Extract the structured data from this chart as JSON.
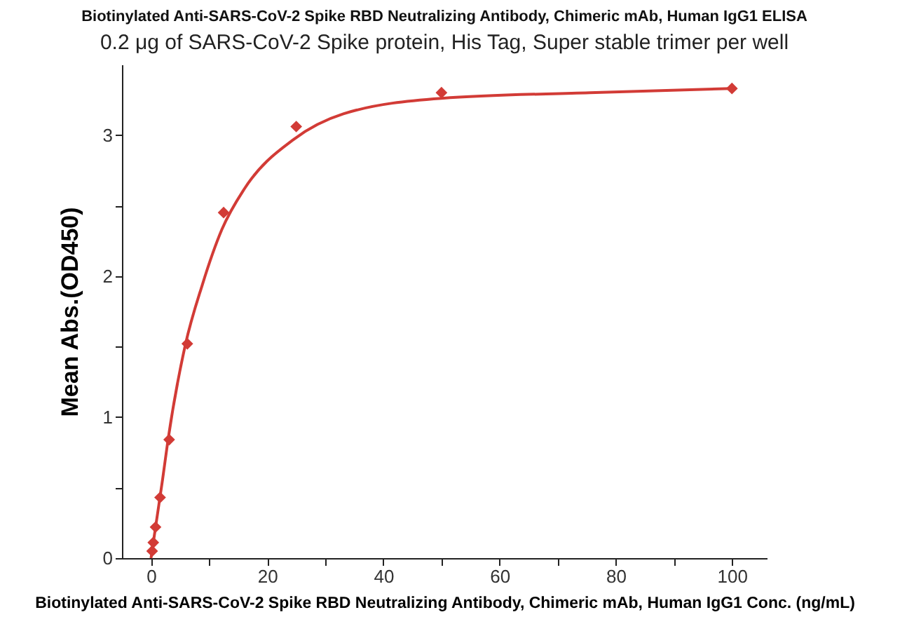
{
  "chart_data": {
    "type": "scatter",
    "title": "Biotinylated Anti-SARS-CoV-2 Spike RBD Neutralizing Antibody, Chimeric mAb, Human IgG1 ELISA",
    "subtitle": "0.2 μg of SARS-CoV-2 Spike protein, His Tag, Super stable trimer per well",
    "xlabel": "Biotinylated Anti-SARS-CoV-2 Spike RBD Neutralizing Antibody, Chimeric mAb, Human IgG1 Conc. (ng/mL)",
    "ylabel": "Mean Abs.(OD450)",
    "xlim": [
      -5,
      106
    ],
    "xticks": [
      0,
      {
        "value": 10,
        "label": null
      },
      20,
      {
        "value": 30,
        "label": null
      },
      40,
      {
        "value": 50,
        "label": null
      },
      60,
      {
        "value": 70,
        "label": null
      },
      80,
      {
        "value": 90,
        "label": null
      },
      100
    ],
    "ylim": [
      0,
      3.5
    ],
    "yticks": [
      0,
      {
        "value": 0.5,
        "label": null
      },
      1,
      {
        "value": 1.5,
        "label": null
      },
      2,
      {
        "value": 2.5,
        "label": null
      },
      3
    ],
    "grid": false,
    "series": [
      {
        "type": "line",
        "color": "#d23b36",
        "marker": "none",
        "x": [
          0,
          0.5,
          1,
          2,
          2.9,
          5.9,
          8.85,
          12.2,
          16.1,
          24.6,
          33.1,
          50,
          75.5,
          99.8
        ],
        "values": [
          0,
          0.14,
          0.28,
          0.56,
          0.83,
          1.51,
          1.94,
          2.33,
          2.62,
          2.97,
          3.15,
          3.26,
          3.3,
          3.33
        ]
      },
      {
        "color": "#d23b36",
        "marker": "diamond",
        "x": [
          0.195,
          0.39,
          0.78,
          1.5625,
          3.125,
          6.25,
          12.5,
          25,
          50,
          100
        ],
        "values": [
          0.05,
          0.11,
          0.22,
          0.43,
          0.84,
          1.52,
          2.45,
          3.06,
          3.3,
          3.33
        ]
      }
    ]
  }
}
